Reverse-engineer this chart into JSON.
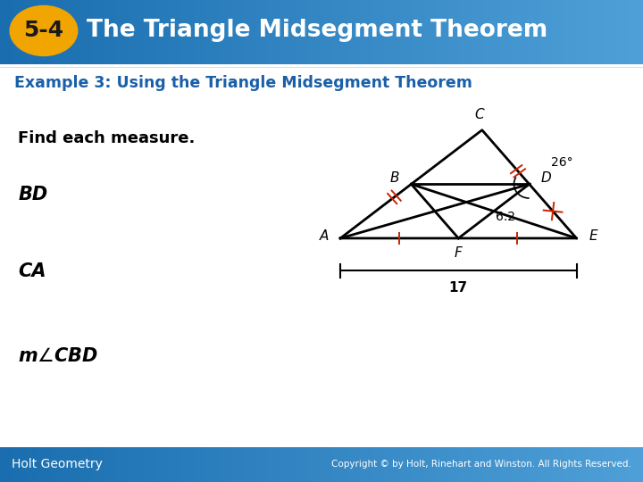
{
  "title_text": "The Triangle Midsegment Theorem",
  "title_badge": "5-4",
  "example_text": "Example 3: Using the Triangle Midsegment Theorem",
  "header_bg": "#1a6eaf",
  "header_gradient_end": "#4fa0d8",
  "badge_bg": "#f0a500",
  "badge_text_color": "#1a1a1a",
  "example_text_color": "#1a5fa8",
  "body_text_color": "#000000",
  "footer_left": "Holt Geometry",
  "footer_right": "Copyright © by Holt, Rinehart and Winston. All Rights Reserved.",
  "bg_color": "#ffffff",
  "label_26": "26°",
  "label_62": "6.2",
  "label_17": "17",
  "tick_color": "#cc2200"
}
